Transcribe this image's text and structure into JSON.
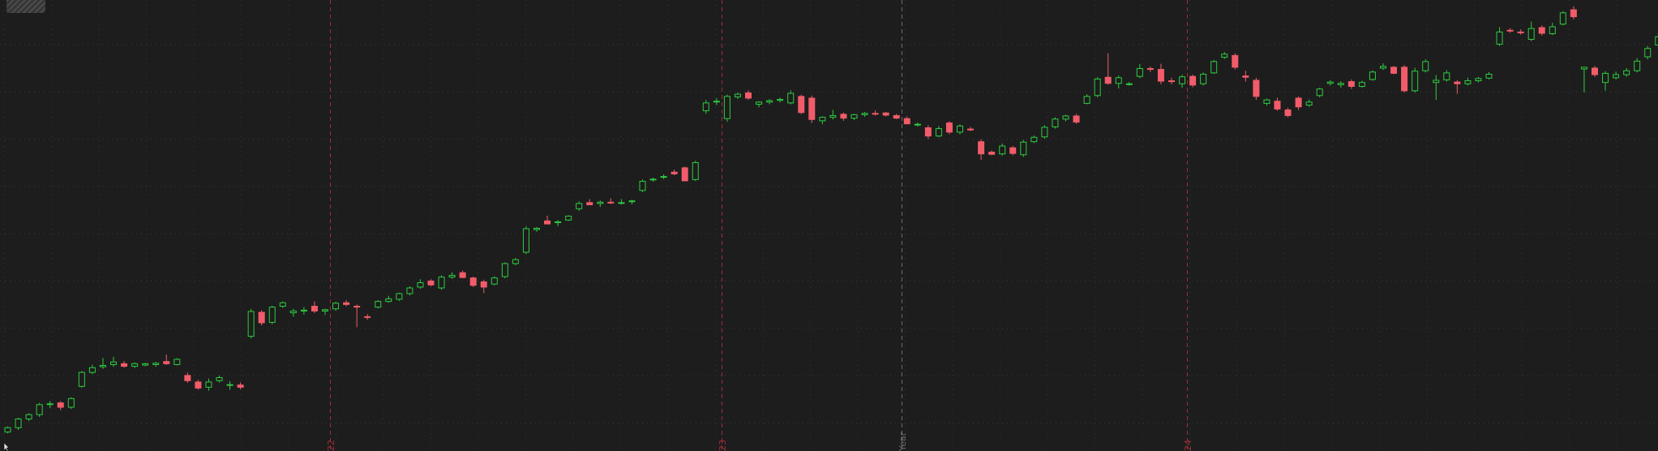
{
  "chart_data": {
    "type": "candlestick",
    "up_color": "#2ecc40",
    "down_color": "#f25c6a",
    "grid": true,
    "background": "#1d1d1d",
    "candles": [
      [
        100.5,
        101.8,
        100.2,
        101.5
      ],
      [
        101.5,
        103.8,
        101.0,
        103.5
      ],
      [
        103.5,
        104.8,
        103.0,
        104.5
      ],
      [
        104.5,
        107.2,
        104.0,
        106.8
      ],
      [
        106.8,
        107.6,
        106.0,
        107.0
      ],
      [
        107.2,
        107.6,
        105.5,
        106.2
      ],
      [
        106.2,
        108.5,
        105.8,
        108.2
      ],
      [
        111.0,
        114.5,
        110.7,
        114.2
      ],
      [
        114.2,
        116.0,
        113.8,
        115.3
      ],
      [
        115.5,
        117.5,
        115.0,
        115.8
      ],
      [
        116.0,
        117.8,
        115.5,
        116.6
      ],
      [
        116.2,
        116.8,
        115.3,
        115.6
      ],
      [
        115.6,
        116.5,
        115.2,
        116.2
      ],
      [
        115.9,
        116.4,
        115.6,
        116.2
      ],
      [
        116.0,
        116.6,
        115.5,
        116.3
      ],
      [
        116.7,
        118.3,
        115.9,
        116.2
      ],
      [
        116.0,
        117.5,
        115.8,
        117.2
      ],
      [
        113.5,
        114.2,
        111.8,
        112.3
      ],
      [
        112.0,
        112.5,
        110.2,
        110.6
      ],
      [
        110.8,
        112.8,
        110.0,
        112.0
      ],
      [
        112.3,
        113.5,
        111.9,
        113.0
      ],
      [
        111.2,
        112.2,
        110.2,
        111.4
      ],
      [
        111.3,
        111.9,
        110.3,
        110.8
      ],
      [
        122.5,
        128.8,
        122.0,
        128.2
      ],
      [
        128.0,
        128.5,
        125.0,
        125.6
      ],
      [
        125.7,
        129.5,
        125.3,
        129.2
      ],
      [
        129.4,
        130.5,
        129.0,
        130.2
      ],
      [
        127.9,
        128.8,
        127.0,
        128.3
      ],
      [
        128.3,
        129.2,
        127.5,
        128.5
      ],
      [
        129.4,
        130.5,
        127.8,
        128.3
      ],
      [
        128.3,
        128.8,
        127.4,
        128.6
      ],
      [
        128.8,
        130.4,
        128.4,
        130.1
      ],
      [
        130.2,
        130.8,
        129.4,
        129.8
      ],
      [
        129.4,
        129.8,
        124.6,
        129.2
      ],
      [
        127.0,
        127.6,
        126.3,
        126.9
      ],
      [
        129.2,
        130.8,
        128.9,
        130.5
      ],
      [
        130.5,
        131.8,
        130.2,
        131.1
      ],
      [
        131.0,
        132.5,
        130.6,
        132.3
      ],
      [
        132.3,
        134.0,
        131.9,
        133.6
      ],
      [
        133.8,
        135.6,
        133.4,
        134.8
      ],
      [
        135.2,
        135.6,
        134.0,
        134.3
      ],
      [
        133.6,
        136.5,
        133.2,
        136.1
      ],
      [
        136.1,
        137.2,
        135.7,
        136.5
      ],
      [
        137.1,
        137.6,
        135.8,
        136.0
      ],
      [
        135.9,
        136.2,
        133.8,
        134.2
      ],
      [
        135.0,
        135.5,
        132.4,
        133.8
      ],
      [
        134.5,
        136.3,
        134.2,
        135.9
      ],
      [
        136.2,
        139.5,
        135.8,
        139.2
      ],
      [
        139.2,
        140.5,
        138.8,
        140.1
      ],
      [
        141.8,
        147.8,
        141.4,
        147.2
      ],
      [
        147.0,
        147.6,
        146.5,
        147.3
      ],
      [
        149.0,
        150.2,
        148.5,
        148.3
      ],
      [
        148.6,
        149.2,
        147.8,
        148.8
      ],
      [
        149.2,
        150.3,
        149.0,
        150.1
      ],
      [
        151.8,
        153.5,
        151.3,
        153.0
      ],
      [
        153.2,
        154.0,
        152.8,
        152.7
      ],
      [
        153.0,
        153.7,
        152.2,
        153.3
      ],
      [
        153.3,
        154.2,
        152.9,
        153.1
      ],
      [
        153.1,
        154.0,
        152.8,
        153.2
      ],
      [
        153.4,
        153.9,
        152.8,
        153.6
      ],
      [
        156.0,
        158.5,
        155.6,
        158.1
      ],
      [
        158.5,
        158.9,
        158.0,
        158.6
      ],
      [
        159.2,
        159.7,
        158.6,
        159.2
      ],
      [
        160.2,
        160.8,
        159.5,
        159.8
      ],
      [
        161.2,
        161.5,
        158.8,
        158.2
      ],
      [
        158.5,
        162.8,
        158.2,
        162.4
      ],
      [
        174.3,
        176.8,
        173.6,
        176.1
      ],
      [
        176.5,
        177.2,
        175.6,
        176.5
      ],
      [
        172.5,
        178.0,
        171.8,
        177.6
      ],
      [
        177.5,
        178.5,
        177.0,
        178.1
      ],
      [
        178.4,
        179.0,
        176.8,
        177.2
      ],
      [
        175.8,
        176.5,
        175.1,
        176.3
      ],
      [
        176.3,
        177.0,
        175.8,
        176.6
      ],
      [
        176.7,
        177.3,
        176.2,
        176.9
      ],
      [
        176.1,
        179.0,
        175.8,
        178.3
      ],
      [
        177.6,
        178.0,
        173.5,
        173.9
      ],
      [
        177.2,
        177.8,
        171.5,
        172.3
      ],
      [
        172.0,
        173.0,
        171.2,
        172.8
      ],
      [
        172.8,
        174.5,
        172.3,
        173.2
      ],
      [
        173.5,
        173.9,
        172.0,
        172.6
      ],
      [
        172.6,
        173.6,
        172.2,
        173.4
      ],
      [
        173.4,
        174.0,
        172.9,
        173.7
      ],
      [
        173.7,
        174.4,
        173.2,
        173.6
      ],
      [
        173.8,
        174.0,
        173.0,
        173.3
      ],
      [
        173.2,
        173.6,
        172.4,
        172.6
      ],
      [
        172.5,
        173.0,
        171.5,
        171.3
      ],
      [
        171.2,
        171.6,
        170.7,
        171.2
      ],
      [
        170.4,
        171.0,
        167.8,
        168.5
      ],
      [
        168.5,
        170.8,
        168.2,
        170.2
      ],
      [
        171.5,
        171.9,
        168.9,
        169.4
      ],
      [
        169.4,
        171.2,
        168.9,
        170.8
      ],
      [
        170.1,
        170.6,
        169.6,
        169.9
      ],
      [
        167.2,
        167.8,
        163.0,
        164.4
      ],
      [
        164.8,
        165.2,
        164.1,
        164.3
      ],
      [
        164.4,
        166.8,
        164.0,
        166.2
      ],
      [
        165.8,
        166.2,
        164.1,
        164.5
      ],
      [
        164.2,
        167.6,
        163.7,
        167.1
      ],
      [
        167.2,
        168.6,
        166.9,
        168.2
      ],
      [
        168.3,
        171.0,
        167.9,
        170.5
      ],
      [
        170.6,
        172.8,
        170.2,
        172.4
      ],
      [
        172.4,
        173.4,
        171.9,
        173.1
      ],
      [
        173.1,
        173.6,
        171.3,
        171.7
      ],
      [
        176.0,
        178.1,
        175.8,
        177.6
      ],
      [
        177.8,
        182.0,
        177.4,
        181.6
      ],
      [
        182.0,
        187.5,
        180.3,
        180.6
      ],
      [
        180.6,
        182.4,
        179.4,
        181.9
      ],
      [
        180.4,
        180.9,
        180.1,
        180.5
      ],
      [
        182.2,
        185.0,
        181.8,
        184.0
      ],
      [
        184.0,
        184.5,
        183.2,
        183.8
      ],
      [
        183.8,
        185.1,
        180.4,
        181.1
      ],
      [
        181.2,
        181.9,
        180.4,
        181.0
      ],
      [
        180.5,
        182.6,
        179.6,
        182.1
      ],
      [
        182.2,
        182.6,
        179.7,
        180.2
      ],
      [
        180.5,
        183.1,
        180.1,
        182.7
      ],
      [
        183.0,
        186.0,
        182.8,
        185.6
      ],
      [
        186.6,
        187.8,
        186.2,
        187.3
      ],
      [
        187.0,
        187.5,
        183.8,
        184.3
      ],
      [
        182.3,
        183.5,
        181.0,
        182.0
      ],
      [
        181.3,
        181.9,
        176.8,
        177.6
      ],
      [
        176.0,
        177.1,
        175.5,
        176.8
      ],
      [
        176.5,
        177.3,
        174.3,
        174.7
      ],
      [
        174.5,
        175.0,
        172.8,
        173.2
      ],
      [
        177.2,
        177.6,
        174.5,
        175.2
      ],
      [
        175.6,
        176.9,
        175.2,
        176.3
      ],
      [
        177.8,
        179.6,
        177.4,
        179.3
      ],
      [
        180.6,
        181.3,
        180.1,
        180.9
      ],
      [
        180.3,
        181.1,
        179.6,
        180.6
      ],
      [
        181.0,
        181.5,
        179.3,
        179.9
      ],
      [
        179.9,
        181.2,
        179.6,
        180.8
      ],
      [
        181.5,
        183.6,
        181.2,
        183.2
      ],
      [
        184.1,
        185.2,
        183.7,
        184.5
      ],
      [
        184.3,
        184.6,
        182.7,
        182.9
      ],
      [
        184.3,
        184.8,
        178.5,
        178.9
      ],
      [
        178.9,
        184.2,
        178.5,
        183.4
      ],
      [
        183.5,
        186.1,
        183.1,
        185.6
      ],
      [
        180.8,
        182.5,
        176.8,
        181.3
      ],
      [
        181.4,
        183.6,
        181.0,
        183.0
      ],
      [
        180.9,
        181.3,
        178.2,
        180.5
      ],
      [
        180.5,
        181.9,
        180.1,
        181.2
      ],
      [
        181.2,
        182.1,
        180.8,
        181.7
      ],
      [
        181.8,
        183.2,
        181.5,
        182.7
      ],
      [
        189.6,
        193.5,
        189.2,
        192.4
      ],
      [
        192.8,
        193.3,
        192.2,
        192.6
      ],
      [
        192.4,
        193.0,
        191.8,
        192.2
      ],
      [
        190.7,
        194.8,
        190.3,
        193.2
      ],
      [
        193.4,
        193.9,
        191.6,
        192.1
      ],
      [
        192.0,
        194.5,
        191.7,
        193.6
      ],
      [
        194.2,
        197.2,
        193.9,
        196.8
      ],
      [
        197.5,
        198.3,
        195.3,
        195.9
      ],
      [
        183.9,
        184.4,
        178.5,
        184.3
      ],
      [
        184.1,
        184.6,
        182.1,
        182.6
      ],
      [
        180.8,
        183.4,
        178.9,
        182.9
      ],
      [
        181.9,
        183.3,
        181.5,
        182.6
      ],
      [
        182.6,
        184.1,
        182.1,
        183.5
      ],
      [
        183.5,
        186.4,
        183.1,
        185.7
      ],
      [
        186.7,
        189.2,
        186.1,
        188.6
      ],
      [
        189.4,
        192.1,
        189.0,
        191.3
      ]
    ],
    "y_range": [
      99.5,
      199.0
    ],
    "vertical_markers": [
      {
        "label": "22",
        "color": "#9c2f38",
        "style": "dash"
      },
      {
        "label": "23",
        "color": "#9c2f38",
        "style": "dash"
      },
      {
        "label": "Year",
        "color": "#6c6c6c",
        "style": "dash"
      },
      {
        "label": "24",
        "color": "#9c2f38",
        "style": "dash"
      }
    ],
    "marker_indexes": [
      30,
      67,
      84,
      111
    ]
  }
}
